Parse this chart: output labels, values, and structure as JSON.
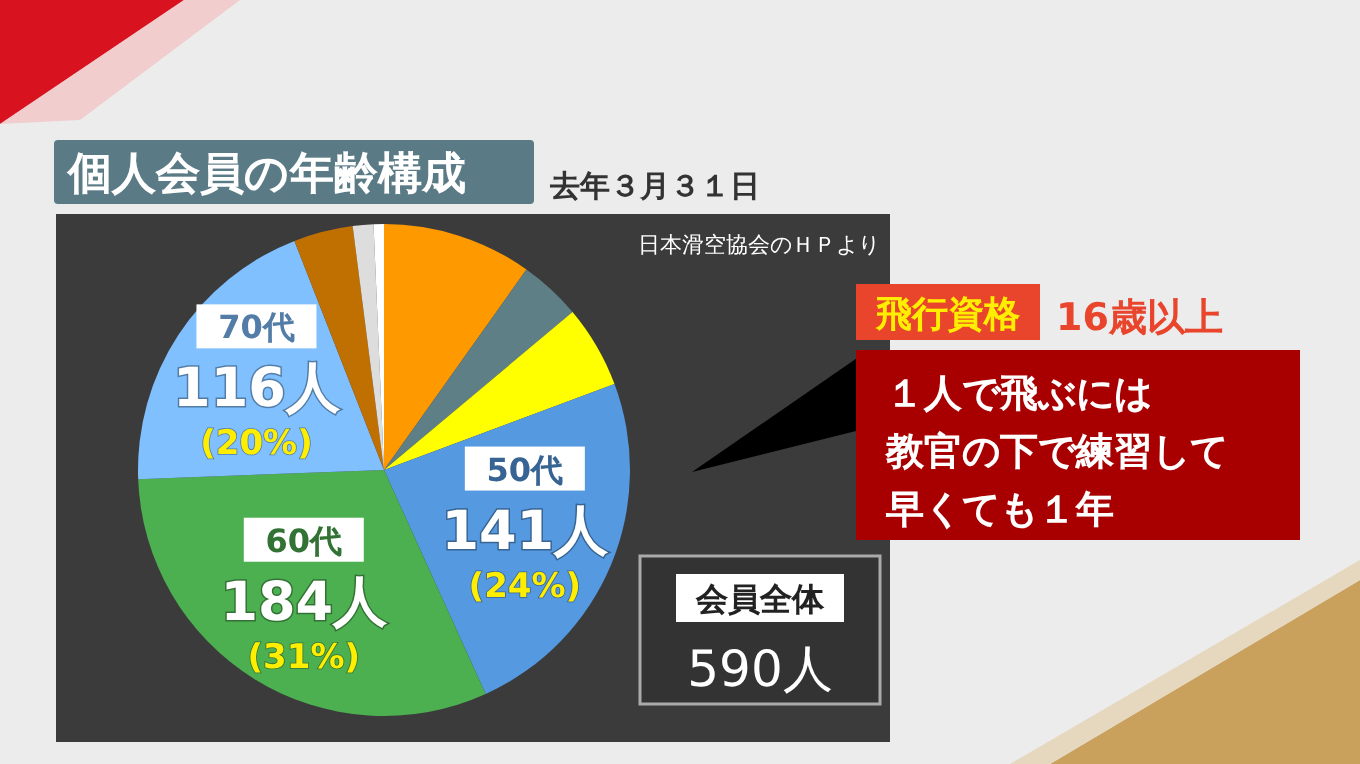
{
  "chart_data": {
    "type": "pie",
    "title": "個人会員の年齢構成",
    "subtitle": "去年３月３１日",
    "categories": [
      null,
      null,
      null,
      "50代",
      "60代",
      "70代",
      null,
      null,
      null
    ],
    "values": [
      58,
      24,
      32,
      141,
      184,
      116,
      23,
      8,
      4
    ],
    "colors": [
      "#ff9900",
      "#5f7f87",
      "#ffff00",
      "#5599e0",
      "#4caf50",
      "#80c0ff",
      "#c07000",
      "#dddddd",
      "#ffffff"
    ],
    "value_labels": [
      null,
      null,
      null,
      "141人\n(24%)",
      "184人\n(31%)",
      "116人\n(20%)",
      null,
      null,
      null
    ],
    "annotations": [
      "日本滑空協会のＨＰより",
      "飛行資格",
      "16歳以上",
      "１人で飛ぶには",
      "教官の下で練習して",
      "早くても１年",
      "会員全体",
      "590人"
    ]
  }
}
